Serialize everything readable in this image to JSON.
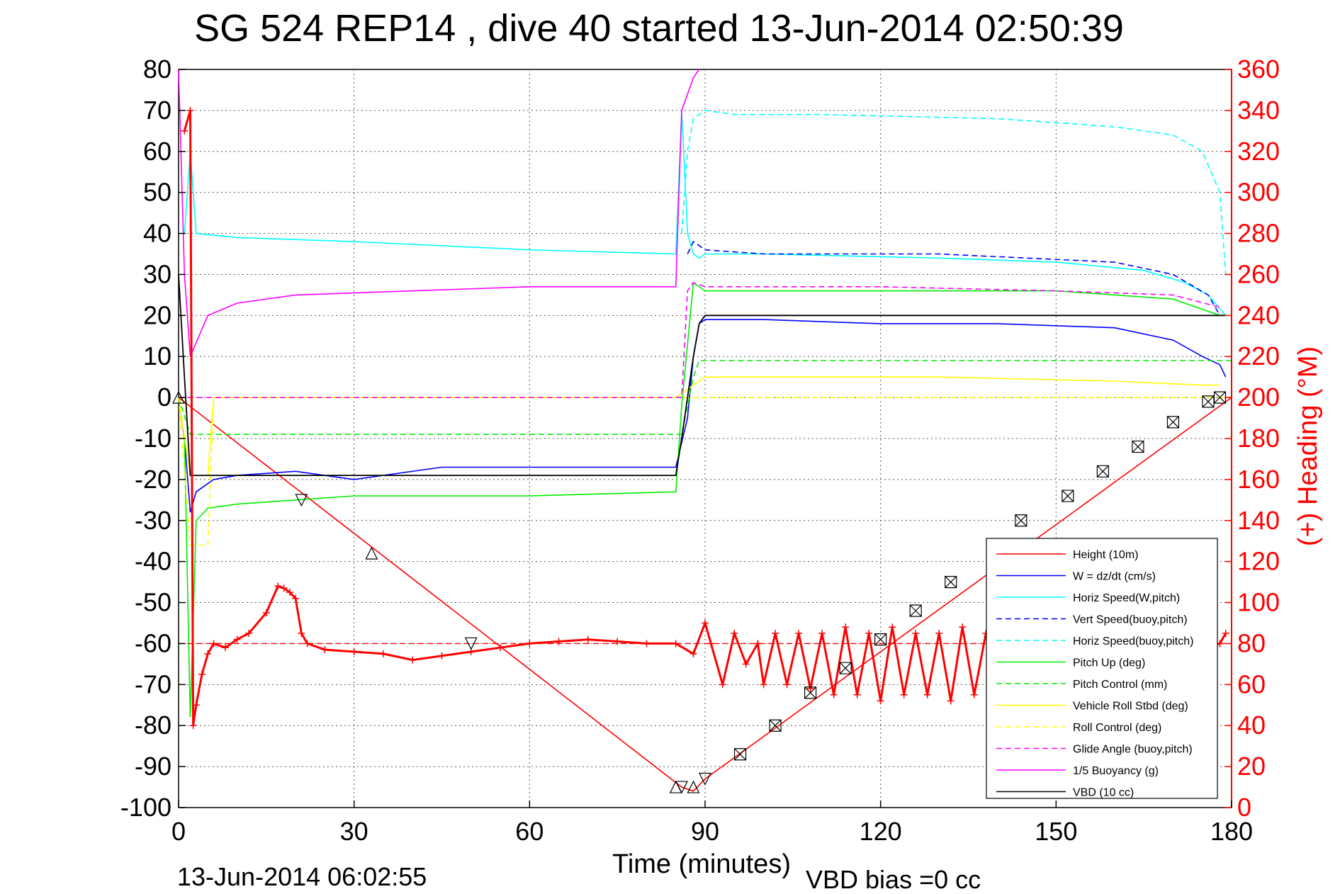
{
  "title": "SG 524   REP14  , dive 40 started 13-Jun-2014 02:50:39",
  "footer": {
    "timestamp": "13-Jun-2014 06:02:55",
    "vbd_bias": "VBD bias =0 cc"
  },
  "colors": {
    "height": "#ff0000",
    "w": "#0000ff",
    "horiz_speed": "#00ffff",
    "pitch": "#00ee00",
    "roll": "#ffff00",
    "glide": "#ff00ff",
    "buoyancy": "#ff00ff",
    "vbd": "#000000",
    "heading": "#ff0000"
  },
  "chart_data": {
    "type": "line",
    "xlabel": "Time (minutes)",
    "ylabel": "",
    "y2label": "(+) Heading (°M)",
    "xlim": [
      0,
      180
    ],
    "ylim": [
      -100,
      80
    ],
    "y2lim": [
      0,
      360
    ],
    "xticks": [
      0,
      30,
      60,
      90,
      120,
      150,
      180
    ],
    "yticks": [
      80,
      70,
      60,
      50,
      40,
      30,
      20,
      10,
      0,
      -10,
      -20,
      -30,
      -40,
      -50,
      -60,
      -70,
      -80,
      -90,
      -100
    ],
    "y2ticks": [
      360,
      340,
      320,
      300,
      280,
      260,
      240,
      220,
      200,
      180,
      160,
      140,
      120,
      100,
      80,
      60,
      40,
      20,
      0
    ],
    "grid": true,
    "legend_position": "bottom-right",
    "legend": [
      {
        "label": "Height (10m)",
        "color": "#ff0000",
        "dash": false
      },
      {
        "label": "W = dz/dt (cm/s)",
        "color": "#0000ff",
        "dash": false
      },
      {
        "label": "Horiz Speed(W,pitch)",
        "color": "#00ffff",
        "dash": false
      },
      {
        "label": "Vert Speed(buoy,pitch)",
        "color": "#0000ff",
        "dash": true
      },
      {
        "label": "Horiz Speed(buoy,pitch)",
        "color": "#00ffff",
        "dash": true
      },
      {
        "label": "Pitch Up (deg)",
        "color": "#00ee00",
        "dash": false
      },
      {
        "label": "Pitch Control (mm)",
        "color": "#00ee00",
        "dash": true
      },
      {
        "label": "Vehicle Roll Stbd (deg)",
        "color": "#ffff00",
        "dash": false
      },
      {
        "label": "Roll Control (deg)",
        "color": "#ffff00",
        "dash": true
      },
      {
        "label": "Glide Angle (buoy,pitch)",
        "color": "#ff00ff",
        "dash": true
      },
      {
        "label": "1/5 Buoyancy (g)",
        "color": "#ff00ff",
        "dash": false
      },
      {
        "label": "VBD (10 cc)",
        "color": "#000000",
        "dash": false
      }
    ],
    "series": [
      {
        "key": "height",
        "name": "Height (10m)",
        "axis": "left",
        "x": [
          0,
          86,
          88,
          90,
          180
        ],
        "y": [
          0,
          -95,
          -96,
          -93,
          0
        ]
      },
      {
        "key": "w",
        "name": "W = dz/dt (cm/s)",
        "axis": "left",
        "x": [
          0,
          1,
          2,
          3,
          6,
          10,
          20,
          30,
          45,
          60,
          75,
          85,
          87,
          88,
          89,
          90,
          100,
          120,
          140,
          160,
          170,
          175,
          178,
          179
        ],
        "y": [
          0,
          -10,
          -28,
          -23,
          -20,
          -19,
          -18,
          -20,
          -17,
          -17,
          -17,
          -17,
          -5,
          10,
          18,
          19,
          19,
          18,
          18,
          17,
          14,
          10,
          8,
          5
        ]
      },
      {
        "key": "horiz_speed",
        "name": "Horiz Speed(W,pitch)",
        "axis": "left",
        "x": [
          1,
          2,
          3,
          10,
          30,
          60,
          85,
          86,
          87,
          88,
          89,
          90,
          100,
          130,
          150,
          165,
          172,
          176,
          179
        ],
        "y": [
          40,
          60,
          40,
          39,
          38,
          36,
          35,
          70,
          40,
          35,
          34,
          35,
          35,
          34,
          33,
          31,
          28,
          25,
          20
        ]
      },
      {
        "key": "vert_speed_buoy",
        "name": "Vert Speed(buoy,pitch)",
        "axis": "left",
        "x": [
          87,
          88,
          90,
          100,
          130,
          160,
          170,
          176,
          178
        ],
        "y": [
          35,
          38,
          36,
          35,
          35,
          33,
          30,
          25,
          20
        ]
      },
      {
        "key": "horiz_speed_buoy",
        "name": "Horiz Speed(buoy,pitch)",
        "axis": "left",
        "x": [
          86,
          87,
          88,
          90,
          95,
          110,
          140,
          160,
          170,
          175,
          178,
          179
        ],
        "y": [
          40,
          60,
          68,
          70,
          69,
          69,
          68,
          66,
          64,
          60,
          50,
          30
        ]
      },
      {
        "key": "pitch",
        "name": "Pitch Up (deg)",
        "axis": "left",
        "x": [
          1,
          2,
          3,
          5,
          10,
          20,
          30,
          60,
          85,
          86,
          88,
          90,
          110,
          150,
          170,
          178
        ],
        "y": [
          -10,
          -78,
          -30,
          -27,
          -26,
          -25,
          -24,
          -24,
          -23,
          -2,
          28,
          26,
          26,
          26,
          24,
          20
        ]
      },
      {
        "key": "pitch_control",
        "name": "Pitch Control (mm)",
        "axis": "left",
        "x": [
          0,
          2,
          3,
          86,
          88,
          89,
          180
        ],
        "y": [
          0,
          -9,
          -9,
          -9,
          5,
          9,
          9
        ]
      },
      {
        "key": "roll",
        "name": "Vehicle Roll Stbd (deg)",
        "axis": "left",
        "x": [
          0,
          2,
          5,
          6,
          85,
          88,
          90,
          100,
          130,
          160,
          175,
          178
        ],
        "y": [
          0,
          -19,
          -19,
          0,
          0,
          3,
          5,
          5,
          5,
          4,
          3,
          3
        ]
      },
      {
        "key": "roll_control",
        "name": "Roll Control (deg)",
        "axis": "left",
        "x": [
          0,
          2,
          5,
          6,
          88,
          90,
          180
        ],
        "y": [
          0,
          -36,
          -36,
          0,
          0,
          0,
          0
        ]
      },
      {
        "key": "glide",
        "name": "Glide Angle (buoy,pitch)",
        "axis": "left",
        "x": [
          0,
          86,
          87,
          88,
          90,
          120,
          150,
          170,
          178
        ],
        "y": [
          0,
          0,
          26,
          28,
          27,
          27,
          26,
          25,
          22
        ]
      },
      {
        "key": "buoyancy",
        "name": "1/5 Buoyancy (g)",
        "axis": "left",
        "x": [
          0,
          1,
          2,
          5,
          10,
          20,
          40,
          60,
          85,
          86,
          88,
          89
        ],
        "y": [
          80,
          30,
          10,
          20,
          23,
          25,
          26,
          27,
          27,
          70,
          78,
          80
        ]
      },
      {
        "key": "vbd",
        "name": "VBD (10 cc)",
        "axis": "left",
        "x": [
          0,
          1,
          2,
          85,
          86,
          87,
          88,
          89,
          90,
          179
        ],
        "y": [
          30,
          5,
          -19,
          -19,
          -10,
          0,
          10,
          18,
          20,
          20
        ]
      }
    ],
    "heading": {
      "name": "(+) Heading",
      "axis": "right",
      "mean_line": 80,
      "x": [
        1,
        2,
        2.5,
        3,
        4,
        5,
        6,
        8,
        10,
        12,
        15,
        17,
        18,
        19,
        20,
        21,
        22,
        25,
        30,
        35,
        40,
        45,
        50,
        55,
        60,
        65,
        70,
        75,
        80,
        85,
        88,
        90,
        91,
        93,
        95,
        97,
        99,
        100,
        102,
        104,
        106,
        108,
        110,
        112,
        114,
        116,
        118,
        120,
        122,
        124,
        126,
        128,
        130,
        132,
        134,
        136,
        138,
        140,
        178,
        179
      ],
      "y": [
        330,
        340,
        40,
        50,
        65,
        75,
        80,
        78,
        82,
        85,
        95,
        108,
        107,
        105,
        102,
        85,
        80,
        77,
        76,
        75,
        72,
        74,
        76,
        78,
        80,
        81,
        82,
        81,
        80,
        80,
        75,
        90,
        80,
        60,
        85,
        70,
        80,
        60,
        85,
        60,
        85,
        58,
        85,
        55,
        88,
        55,
        85,
        52,
        88,
        55,
        85,
        55,
        85,
        52,
        88,
        55,
        85,
        55,
        80,
        85
      ]
    },
    "markers": {
      "height_points": [
        [
          0,
          0
        ],
        [
          21,
          -25
        ],
        [
          33,
          -38
        ],
        [
          50,
          -60
        ],
        [
          85,
          -95
        ],
        [
          86,
          -95
        ],
        [
          88,
          -95
        ],
        [
          90,
          -93
        ],
        [
          96,
          -87
        ],
        [
          102,
          -80
        ],
        [
          108,
          -72
        ],
        [
          114,
          -66
        ],
        [
          120,
          -59
        ],
        [
          126,
          -52
        ],
        [
          132,
          -45
        ],
        [
          144,
          -30
        ],
        [
          152,
          -24
        ],
        [
          158,
          -18
        ],
        [
          164,
          -12
        ],
        [
          170,
          -6
        ],
        [
          176,
          -1
        ],
        [
          178,
          0
        ]
      ]
    }
  }
}
